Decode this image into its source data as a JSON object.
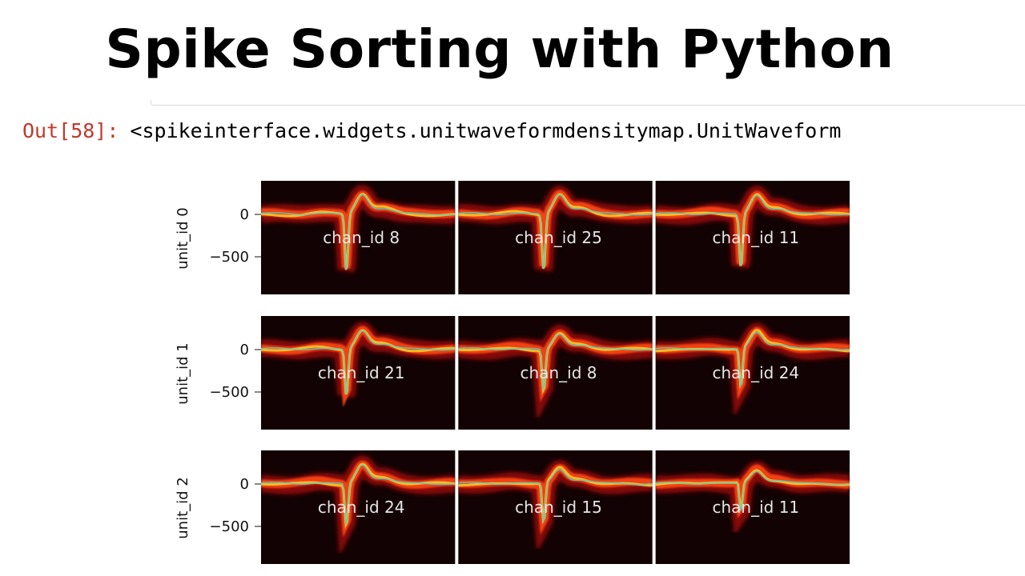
{
  "title": "Spike Sorting with Python",
  "cell": {
    "prompt": "Out[58]:",
    "text": "<spikeinterface.widgets.unitwaveformdensitymap.UnitWaveform"
  },
  "colors": {
    "background": "#ffffff",
    "prompt": "#c0392b",
    "panel": "#120203",
    "density_outer": "#b01008",
    "density_inner": "#ff4a18",
    "density_core": "#f3d22a",
    "template_line": "#5fc9b4",
    "channel_label": "#e6e6e6"
  },
  "figure": {
    "ytick_labels": [
      "0",
      "−500"
    ],
    "rows": [
      {
        "unit_label": "unit_id 0",
        "channels": [
          {
            "label": "chan_id 8",
            "trough": -700,
            "peak": 230
          },
          {
            "label": "chan_id 25",
            "trough": -680,
            "peak": 230
          },
          {
            "label": "chan_id 11",
            "trough": -640,
            "peak": 220
          }
        ]
      },
      {
        "unit_label": "unit_id 1",
        "channels": [
          {
            "label": "chan_id 21",
            "trough": -560,
            "peak": 220
          },
          {
            "label": "chan_id 8",
            "trough": -500,
            "peak": 180
          },
          {
            "label": "chan_id 24",
            "trough": -460,
            "peak": 200
          }
        ]
      },
      {
        "unit_label": "unit_id 2",
        "channels": [
          {
            "label": "chan_id 24",
            "trough": -500,
            "peak": 220
          },
          {
            "label": "chan_id 15",
            "trough": -470,
            "peak": 170
          },
          {
            "label": "chan_id 11",
            "trough": -330,
            "peak": 150
          }
        ]
      }
    ]
  }
}
